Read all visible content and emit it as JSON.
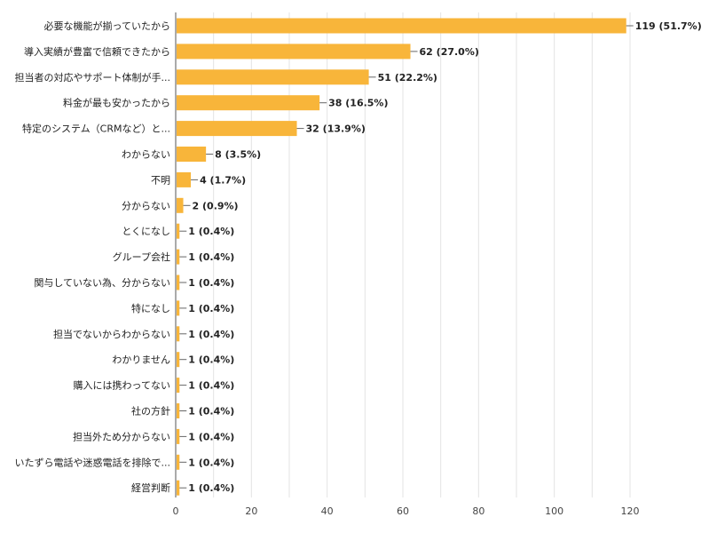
{
  "chart_data": {
    "type": "bar",
    "orientation": "horizontal",
    "categories": [
      "必要な機能が揃っていたから",
      "導入実績が豊富で信頼できたから",
      "担当者の対応やサポート体制が手...",
      "料金が最も安かったから",
      "特定のシステム（CRMなど）と...",
      "わからない",
      "不明",
      "分からない",
      "とくになし",
      "グループ会社",
      "関与していない為、分からない",
      "特になし",
      "担当でないからわからない",
      "わかりません",
      "購入には携わってない",
      "社の方針",
      "担当外ため分からない",
      "いたずら電話や迷惑電話を排除で...",
      "経営判断"
    ],
    "values": [
      119,
      62,
      51,
      38,
      32,
      8,
      4,
      2,
      1,
      1,
      1,
      1,
      1,
      1,
      1,
      1,
      1,
      1,
      1
    ],
    "value_labels": [
      "119 (51.7%)",
      "62 (27.0%)",
      "51 (22.2%)",
      "38 (16.5%)",
      "32 (13.9%)",
      "8 (3.5%)",
      "4 (1.7%)",
      "2 (0.9%)",
      "1 (0.4%)",
      "1 (0.4%)",
      "1 (0.4%)",
      "1 (0.4%)",
      "1 (0.4%)",
      "1 (0.4%)",
      "1 (0.4%)",
      "1 (0.4%)",
      "1 (0.4%)",
      "1 (0.4%)",
      "1 (0.4%)"
    ],
    "x_ticks": [
      0,
      20,
      40,
      60,
      80,
      100,
      120
    ],
    "xlim": [
      0,
      120
    ],
    "grid": true,
    "bar_color": "#F8B53A",
    "title": "",
    "xlabel": "",
    "ylabel": ""
  }
}
